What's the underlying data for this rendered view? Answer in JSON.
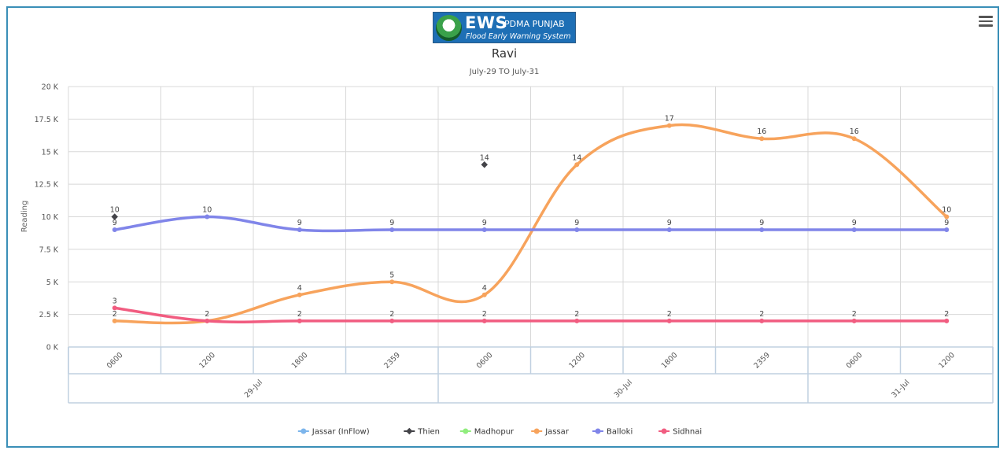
{
  "header": {
    "logo_main": "EWS",
    "logo_org": "PDMA PUNJAB",
    "logo_sub": "Flood Early Warning System"
  },
  "chart_data": {
    "type": "line",
    "title": "Ravi",
    "subtitle": "July-29 TO July-31",
    "ylabel": "Reading",
    "xlabel": "",
    "ylim": [
      0,
      20000
    ],
    "y_ticks": [
      0,
      2500,
      5000,
      7500,
      10000,
      12500,
      15000,
      17500,
      20000
    ],
    "y_tick_labels": [
      "0 K",
      "2.5 K",
      "5 K",
      "7.5 K",
      "10 K",
      "12.5 K",
      "15 K",
      "17.5 K",
      "20 K"
    ],
    "categories": [
      "0600",
      "1200",
      "1800",
      "2359",
      "0600",
      "1200",
      "1800",
      "2359",
      "0600",
      "1200"
    ],
    "groups": [
      {
        "label": "29-Jul",
        "count": 4
      },
      {
        "label": "30-Jul",
        "count": 4
      },
      {
        "label": "31-Jul",
        "count": 2
      }
    ],
    "grid": true,
    "legend_position": "bottom",
    "series": [
      {
        "name": "Jassar (InFlow)",
        "color": "#7cb5ec",
        "values": [
          null,
          null,
          null,
          null,
          null,
          null,
          null,
          null,
          null,
          null
        ],
        "data_labels": [
          null,
          null,
          null,
          null,
          null,
          null,
          null,
          null,
          null,
          null
        ]
      },
      {
        "name": "Thien",
        "color": "#434348",
        "values": [
          10000,
          null,
          null,
          null,
          14000,
          null,
          null,
          null,
          null,
          null
        ],
        "data_labels": [
          "10",
          null,
          null,
          null,
          "14",
          null,
          null,
          null,
          null,
          null
        ]
      },
      {
        "name": "Madhopur",
        "color": "#90ed7d",
        "values": [
          null,
          null,
          null,
          null,
          null,
          null,
          null,
          null,
          null,
          null
        ],
        "data_labels": [
          null,
          null,
          null,
          null,
          null,
          null,
          null,
          null,
          null,
          null
        ]
      },
      {
        "name": "Jassar",
        "color": "#f7a35c",
        "values": [
          2000,
          2000,
          4000,
          5000,
          4000,
          14000,
          17000,
          16000,
          16000,
          10000
        ],
        "data_labels": [
          "2",
          "",
          "4",
          "5",
          "4",
          "14",
          "17",
          "16",
          "16",
          "10"
        ]
      },
      {
        "name": "Balloki",
        "color": "#8085e9",
        "values": [
          9000,
          10000,
          9000,
          9000,
          9000,
          9000,
          9000,
          9000,
          9000,
          9000
        ],
        "data_labels": [
          "9",
          "10",
          "9",
          "9",
          "9",
          "9",
          "9",
          "9",
          "9",
          "9"
        ]
      },
      {
        "name": "Sidhnai",
        "color": "#f15c80",
        "values": [
          3000,
          2000,
          2000,
          2000,
          2000,
          2000,
          2000,
          2000,
          2000,
          2000
        ],
        "data_labels": [
          "3",
          "2",
          "2",
          "2",
          "2",
          "2",
          "2",
          "2",
          "2",
          "2"
        ]
      }
    ]
  }
}
